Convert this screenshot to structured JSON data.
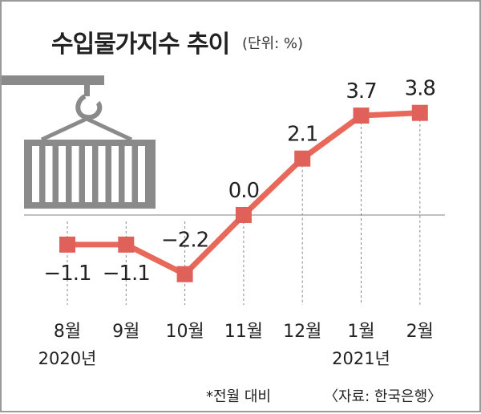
{
  "header": {
    "title": "수입물가지수 추이",
    "unit": "(단위: %)"
  },
  "footnote": "*전월 대비",
  "source": "〈자료: 한국은행〉",
  "colors": {
    "line": "#e8685a",
    "marker": "#e0605a",
    "baseline": "#9a9a9a",
    "guide": "#888888",
    "illustration": "#8a8a8a"
  },
  "icons": [
    "crane-container-illustration"
  ],
  "chart_data": {
    "type": "line",
    "title": "수입물가지수 추이",
    "unit": "%",
    "categories": [
      "8월",
      "9월",
      "10월",
      "11월",
      "12월",
      "1월",
      "2월"
    ],
    "year_labels": [
      {
        "category": "8월",
        "label": "2020년"
      },
      {
        "category": "1월",
        "label": "2021년"
      }
    ],
    "series": [
      {
        "values": [
          -1.1,
          -1.1,
          -2.2,
          0.0,
          2.1,
          3.7,
          3.8
        ]
      }
    ],
    "data_labels": [
      "−1.1",
      "−1.1",
      "−2.2",
      "0.0",
      "2.1",
      "3.7",
      "3.8"
    ],
    "baseline": 0,
    "grid": false,
    "legend": "none"
  }
}
